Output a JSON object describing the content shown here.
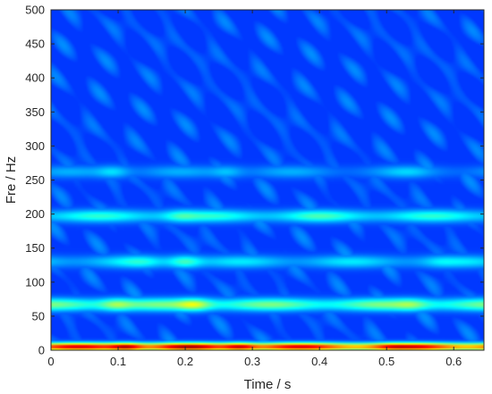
{
  "chart_data": {
    "type": "heatmap",
    "title": "",
    "xlabel": "Time / s",
    "ylabel": "Fre / Hz",
    "xlim": [
      0,
      0.645
    ],
    "ylim": [
      0,
      500
    ],
    "x_ticks": [
      0,
      0.1,
      0.2,
      0.3,
      0.4,
      0.5,
      0.6
    ],
    "x_tick_labels": [
      "0",
      "0.1",
      "0.2",
      "0.3",
      "0.4",
      "0.5",
      "0.6"
    ],
    "y_ticks": [
      0,
      50,
      100,
      150,
      200,
      250,
      300,
      350,
      400,
      450,
      500
    ],
    "y_tick_labels": [
      "0",
      "50",
      "100",
      "150",
      "200",
      "250",
      "300",
      "350",
      "400",
      "450",
      "500"
    ],
    "grid": false,
    "colormap": "jet",
    "background_intensity": 0.18,
    "bands": [
      {
        "frequency_hz": 5,
        "intensity": 0.93,
        "hotspots": [
          {
            "time_s": 0.11,
            "intensity": 0.98
          },
          {
            "time_s": 0.205,
            "intensity": 0.99
          },
          {
            "time_s": 0.28,
            "intensity": 0.95
          },
          {
            "time_s": 0.52,
            "intensity": 0.96
          }
        ]
      },
      {
        "frequency_hz": 67,
        "intensity": 0.5,
        "hotspots": [
          {
            "time_s": 0.1,
            "intensity": 0.55
          },
          {
            "time_s": 0.21,
            "intensity": 0.62
          },
          {
            "time_s": 0.53,
            "intensity": 0.55
          }
        ]
      },
      {
        "frequency_hz": 130,
        "intensity": 0.36,
        "hotspots": [
          {
            "time_s": 0.13,
            "intensity": 0.42
          },
          {
            "time_s": 0.2,
            "intensity": 0.44
          },
          {
            "time_s": 0.59,
            "intensity": 0.38
          }
        ]
      },
      {
        "frequency_hz": 197,
        "intensity": 0.42,
        "hotspots": [
          {
            "time_s": 0.2,
            "intensity": 0.46
          },
          {
            "time_s": 0.4,
            "intensity": 0.45
          }
        ]
      },
      {
        "frequency_hz": 262,
        "intensity": 0.3,
        "hotspots": [
          {
            "time_s": 0.09,
            "intensity": 0.35
          },
          {
            "time_s": 0.26,
            "intensity": 0.32
          },
          {
            "time_s": 0.53,
            "intensity": 0.34
          }
        ]
      }
    ]
  }
}
